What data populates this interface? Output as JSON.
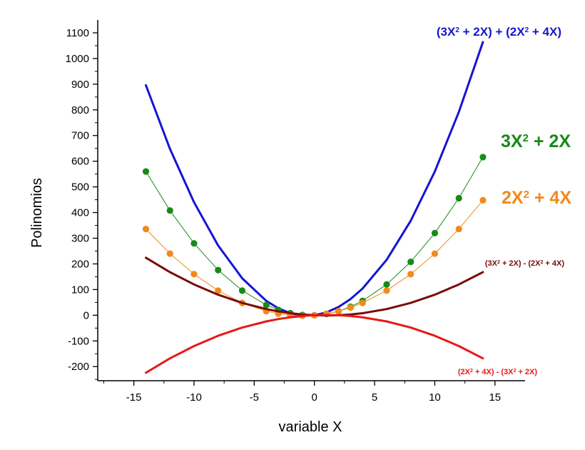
{
  "chart_data": {
    "type": "line",
    "title": "",
    "xlabel": "variable X",
    "ylabel": "Polinomios",
    "xlim": [
      -18,
      17.5
    ],
    "ylim": [
      -255,
      1150
    ],
    "x_ticks": [
      -15,
      -10,
      -5,
      0,
      5,
      10,
      15
    ],
    "x_tick_labels": [
      "-15",
      "-10",
      "-5",
      "0",
      "5",
      "10",
      "15"
    ],
    "y_ticks": [
      -200,
      -100,
      0,
      100,
      200,
      300,
      400,
      500,
      600,
      700,
      800,
      900,
      1000,
      1100
    ],
    "y_tick_labels": [
      "-200",
      "-100",
      "0",
      "100",
      "200",
      "300",
      "400",
      "500",
      "600",
      "700",
      "800",
      "900",
      "1000",
      "1100"
    ],
    "grid": false,
    "series": [
      {
        "name": "(3X2 + 2X) + (2X2 + 4X)",
        "label_parts": [
          [
            "(3X",
            ""
          ],
          [
            "2",
            "sup"
          ],
          [
            " + 2X) + (2X",
            ""
          ],
          [
            "2",
            "sup"
          ],
          [
            " + 4X)",
            ""
          ]
        ],
        "color": "#1515d0",
        "style": "line",
        "x": [
          -14,
          -12,
          -10,
          -8,
          -6,
          -4,
          -3,
          -2,
          -1,
          0,
          1,
          2,
          3,
          4,
          6,
          8,
          10,
          12,
          14
        ],
        "y": [
          896,
          648,
          440,
          272,
          144,
          56,
          27,
          8,
          -1,
          0,
          11,
          32,
          63,
          104,
          216,
          368,
          560,
          792,
          1064
        ]
      },
      {
        "name": "3X2 + 2X",
        "label_parts": [
          [
            "3X",
            ""
          ],
          [
            "2",
            "sup"
          ],
          [
            " + 2X",
            ""
          ]
        ],
        "color": "#178a17",
        "style": "line+markers",
        "x": [
          -14,
          -12,
          -10,
          -8,
          -6,
          -4,
          -3,
          -2,
          -1,
          0,
          1,
          2,
          3,
          4,
          6,
          8,
          10,
          12,
          14
        ],
        "y": [
          560,
          408,
          280,
          176,
          96,
          40,
          21,
          8,
          1,
          0,
          5,
          16,
          33,
          56,
          120,
          208,
          320,
          456,
          616
        ]
      },
      {
        "name": "2X2 + 4X",
        "label_parts": [
          [
            "2X",
            ""
          ],
          [
            "2",
            "sup"
          ],
          [
            " + 4X",
            ""
          ]
        ],
        "color": "#f08a1c",
        "style": "line+markers",
        "x": [
          -14,
          -12,
          -10,
          -8,
          -6,
          -4,
          -3,
          -2,
          -1,
          0,
          1,
          2,
          3,
          4,
          6,
          8,
          10,
          12,
          14
        ],
        "y": [
          336,
          240,
          160,
          96,
          48,
          16,
          6,
          0,
          -2,
          0,
          6,
          16,
          30,
          48,
          96,
          160,
          240,
          336,
          448
        ]
      },
      {
        "name": "(3X2 + 2X) - (2X2 + 4X)",
        "label_parts": [
          [
            "(3X",
            ""
          ],
          [
            "2",
            "sup"
          ],
          [
            " + 2X) - (2X",
            ""
          ],
          [
            "2",
            "sup"
          ],
          [
            " + 4X)",
            ""
          ]
        ],
        "color": "#7a0a0a",
        "style": "line",
        "x": [
          -14,
          -12,
          -10,
          -8,
          -6,
          -4,
          -3,
          -2,
          -1,
          0,
          1,
          2,
          3,
          4,
          6,
          8,
          10,
          12,
          14
        ],
        "y": [
          224,
          168,
          120,
          80,
          48,
          24,
          15,
          8,
          3,
          0,
          -1,
          0,
          3,
          8,
          24,
          48,
          80,
          120,
          168
        ]
      },
      {
        "name": "(2X2 + 4X) - (3X2 + 2X)",
        "label_parts": [
          [
            "(2X",
            ""
          ],
          [
            "2",
            "sup"
          ],
          [
            " + 4X) - (3X",
            ""
          ],
          [
            "2",
            "sup"
          ],
          [
            " + 2X)",
            ""
          ]
        ],
        "color": "#e81818",
        "style": "line",
        "x": [
          -14,
          -12,
          -10,
          -8,
          -6,
          -4,
          -3,
          -2,
          -1,
          0,
          1,
          2,
          3,
          4,
          6,
          8,
          10,
          12,
          14
        ],
        "y": [
          -224,
          -168,
          -120,
          -80,
          -48,
          -24,
          -15,
          -8,
          -3,
          0,
          1,
          0,
          -3,
          -8,
          -24,
          -48,
          -80,
          -120,
          -168
        ]
      }
    ]
  }
}
